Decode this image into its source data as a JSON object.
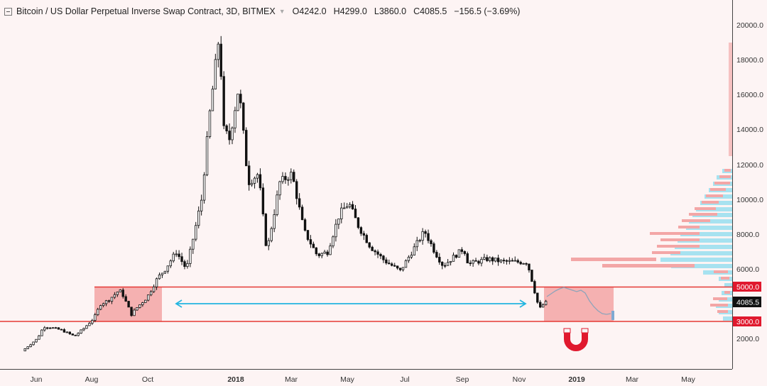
{
  "header": {
    "symbol": "Bitcoin / US Dollar Perpetual Inverse Swap Contract, 3D, BITMEX",
    "open_label": "O",
    "open": "4242.0",
    "high_label": "H",
    "high": "4299.0",
    "low_label": "L",
    "low": "3860.0",
    "close_label": "C",
    "close": "4085.5",
    "change": "−156.5 (−3.69%)"
  },
  "chart_data": {
    "type": "candlestick",
    "x_tick_labels": [
      "Jun",
      "Aug",
      "Oct",
      "2018",
      "Mar",
      "May",
      "Jul",
      "Sep",
      "Nov",
      "2019",
      "Mar",
      "May"
    ],
    "y_tick_labels": [
      "20000.0",
      "18000.0",
      "16000.0",
      "14000.0",
      "12000.0",
      "10000.0",
      "8000.0",
      "6000.0",
      "2000.0"
    ],
    "ylim": [
      500,
      21300
    ],
    "price_labels": {
      "upper": "5000.0",
      "current": "4085.5",
      "lower": "3000.0"
    },
    "series": [
      {
        "x": "2017-05-20",
        "y": 1300
      },
      {
        "x": "2017-06-05",
        "y": 2000
      },
      {
        "x": "2017-06-12",
        "y": 2700
      },
      {
        "x": "2017-06-20",
        "y": 2650
      },
      {
        "x": "2017-07-01",
        "y": 2500
      },
      {
        "x": "2017-07-15",
        "y": 2150
      },
      {
        "x": "2017-07-25",
        "y": 2600
      },
      {
        "x": "2017-08-05",
        "y": 3200
      },
      {
        "x": "2017-08-12",
        "y": 4000
      },
      {
        "x": "2017-08-20",
        "y": 4200
      },
      {
        "x": "2017-09-01",
        "y": 4800
      },
      {
        "x": "2017-09-05",
        "y": 4500
      },
      {
        "x": "2017-09-14",
        "y": 3400
      },
      {
        "x": "2017-09-20",
        "y": 3800
      },
      {
        "x": "2017-10-01",
        "y": 4400
      },
      {
        "x": "2017-10-12",
        "y": 5500
      },
      {
        "x": "2017-10-20",
        "y": 6000
      },
      {
        "x": "2017-11-01",
        "y": 7000
      },
      {
        "x": "2017-11-12",
        "y": 6000
      },
      {
        "x": "2017-11-20",
        "y": 8000
      },
      {
        "x": "2017-11-28",
        "y": 10000
      },
      {
        "x": "2017-12-07",
        "y": 15000
      },
      {
        "x": "2017-12-17",
        "y": 19500
      },
      {
        "x": "2017-12-22",
        "y": 14000
      },
      {
        "x": "2017-12-28",
        "y": 13500
      },
      {
        "x": "2018-01-07",
        "y": 16500
      },
      {
        "x": "2018-01-17",
        "y": 11000
      },
      {
        "x": "2018-01-28",
        "y": 11500
      },
      {
        "x": "2018-02-06",
        "y": 7000
      },
      {
        "x": "2018-02-20",
        "y": 11000
      },
      {
        "x": "2018-03-05",
        "y": 11500
      },
      {
        "x": "2018-03-18",
        "y": 8200
      },
      {
        "x": "2018-04-01",
        "y": 6800
      },
      {
        "x": "2018-04-12",
        "y": 7000
      },
      {
        "x": "2018-04-25",
        "y": 9200
      },
      {
        "x": "2018-05-05",
        "y": 9800
      },
      {
        "x": "2018-05-15",
        "y": 8500
      },
      {
        "x": "2018-05-28",
        "y": 7300
      },
      {
        "x": "2018-06-12",
        "y": 6500
      },
      {
        "x": "2018-06-29",
        "y": 5900
      },
      {
        "x": "2018-07-08",
        "y": 6700
      },
      {
        "x": "2018-07-25",
        "y": 8200
      },
      {
        "x": "2018-08-05",
        "y": 7000
      },
      {
        "x": "2018-08-14",
        "y": 6200
      },
      {
        "x": "2018-09-05",
        "y": 7200
      },
      {
        "x": "2018-09-10",
        "y": 6300
      },
      {
        "x": "2018-10-01",
        "y": 6600
      },
      {
        "x": "2018-10-15",
        "y": 6450
      },
      {
        "x": "2018-11-12",
        "y": 6400
      },
      {
        "x": "2018-11-16",
        "y": 5600
      },
      {
        "x": "2018-11-21",
        "y": 4500
      },
      {
        "x": "2018-11-25",
        "y": 3700
      },
      {
        "x": "2018-12-01",
        "y": 4085.5
      }
    ],
    "annotations": [
      "support range 3000-5000",
      "double-headed range arrow",
      "magnet symbol"
    ]
  }
}
